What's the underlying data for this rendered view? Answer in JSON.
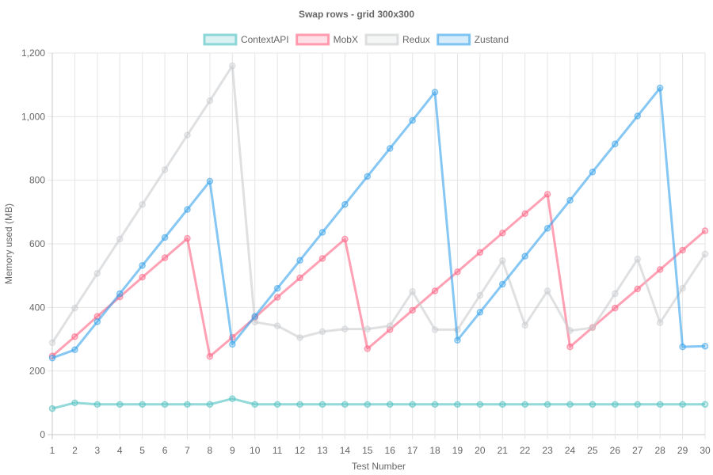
{
  "chart_data": {
    "type": "line",
    "title": "Swap rows - grid 300x300",
    "xlabel": "Test Number",
    "ylabel": "Memory used (MB)",
    "ylim": [
      0,
      1200
    ],
    "yticks": [
      0,
      200,
      400,
      600,
      800,
      1000,
      1200
    ],
    "ytick_labels": [
      "0",
      "200",
      "400",
      "600",
      "800",
      "1,000",
      "1,200"
    ],
    "grid": true,
    "legend": "top",
    "categories": [
      "1",
      "2",
      "3",
      "4",
      "5",
      "6",
      "7",
      "8",
      "9",
      "10",
      "11",
      "12",
      "13",
      "14",
      "15",
      "16",
      "17",
      "18",
      "19",
      "20",
      "21",
      "22",
      "23",
      "24",
      "25",
      "26",
      "27",
      "28",
      "29",
      "30"
    ],
    "series": [
      {
        "name": "ContextAPI",
        "color": "#4bc0c0",
        "values": [
          82,
          100,
          95,
          95,
          95,
          95,
          95,
          95,
          113,
          95,
          95,
          95,
          95,
          95,
          95,
          95,
          95,
          95,
          95,
          95,
          95,
          95,
          95,
          95,
          95,
          95,
          95,
          95,
          95,
          95
        ]
      },
      {
        "name": "MobX",
        "color": "#ff6384",
        "values": [
          247,
          308,
          372,
          433,
          495,
          556,
          617,
          246,
          306,
          368,
          432,
          493,
          554,
          615,
          270,
          330,
          391,
          452,
          512,
          573,
          634,
          695,
          756,
          276,
          337,
          398,
          458,
          519,
          580,
          641
        ]
      },
      {
        "name": "Redux",
        "color": "#c9cbcf",
        "values": [
          289,
          398,
          507,
          615,
          724,
          833,
          942,
          1050,
          1160,
          354,
          342,
          305,
          324,
          332,
          332,
          342,
          450,
          330,
          330,
          438,
          547,
          344,
          452,
          327,
          336,
          443,
          552,
          352,
          460,
          568
        ]
      },
      {
        "name": "Zustand",
        "color": "#36a2eb",
        "values": [
          241,
          267,
          355,
          443,
          532,
          620,
          708,
          797,
          284,
          372,
          460,
          548,
          636,
          724,
          812,
          900,
          988,
          1077,
          297,
          385,
          473,
          561,
          649,
          737,
          826,
          914,
          1002,
          1090,
          276,
          278
        ]
      }
    ]
  }
}
